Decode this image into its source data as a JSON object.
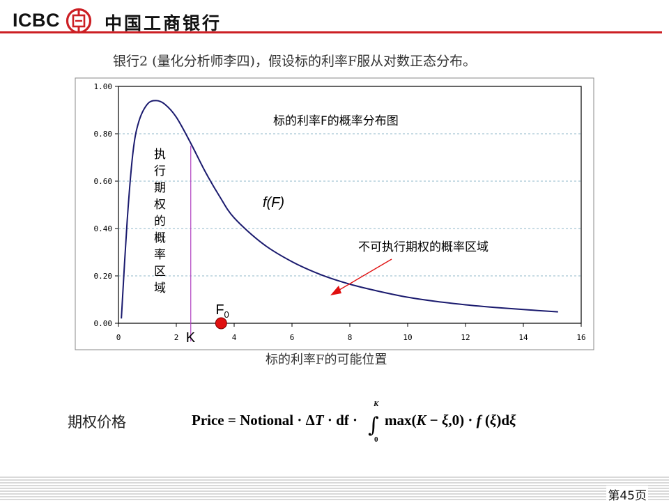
{
  "header": {
    "brand_latin": "ICBC",
    "brand_cn": "中国工商银行",
    "accent_color": "#cc1f24"
  },
  "slide": {
    "subtitle": "银行2 (量化分析师李四)，假设标的利率F服从对数正态分布。",
    "formula_label": "期权价格",
    "formula_text": "Price = Notional · ΔT · df · ∫₀^K max(K − ξ, 0) · f(ξ) dξ",
    "page_number": "第45页"
  },
  "chart_data": {
    "type": "line",
    "title": "标的利率F的概率分布图",
    "xlabel": "标的利率F的可能位置",
    "ylabel": "",
    "xlim": [
      0,
      16
    ],
    "ylim": [
      0,
      1.0
    ],
    "x_ticks": [
      "0",
      "2",
      "4",
      "6",
      "8",
      "10",
      "12",
      "14",
      "16"
    ],
    "y_ticks": [
      "0.00",
      "0.20",
      "0.40",
      "0.60",
      "0.80",
      "1.00"
    ],
    "grid": "horizontal dashed",
    "series": [
      {
        "name": "f(F)",
        "color": "#1a1a6e",
        "x": [
          0.1,
          0.3,
          0.5,
          0.7,
          1.0,
          1.3,
          1.6,
          2.0,
          2.5,
          3.0,
          3.5,
          4.0,
          5.0,
          6.0,
          7.0,
          8.0,
          9.0,
          10.0,
          11.0,
          12.0,
          13.0,
          14.0,
          15.2
        ],
        "y": [
          0.02,
          0.43,
          0.72,
          0.85,
          0.925,
          0.94,
          0.925,
          0.87,
          0.76,
          0.64,
          0.535,
          0.445,
          0.335,
          0.26,
          0.205,
          0.165,
          0.135,
          0.11,
          0.092,
          0.078,
          0.067,
          0.058,
          0.048
        ]
      }
    ],
    "series_label": "f(F)",
    "strike": {
      "label": "K",
      "x": 2.5,
      "y": 0.75,
      "color": "#b040c0"
    },
    "forward": {
      "label": "F",
      "subscript": "0",
      "x": 3.55,
      "color": "#e01010"
    },
    "exercise_region_label": "执行期权的概率区域",
    "no_exercise_label": "不可执行期权的概率区域",
    "arrow_color": "#e01010"
  }
}
